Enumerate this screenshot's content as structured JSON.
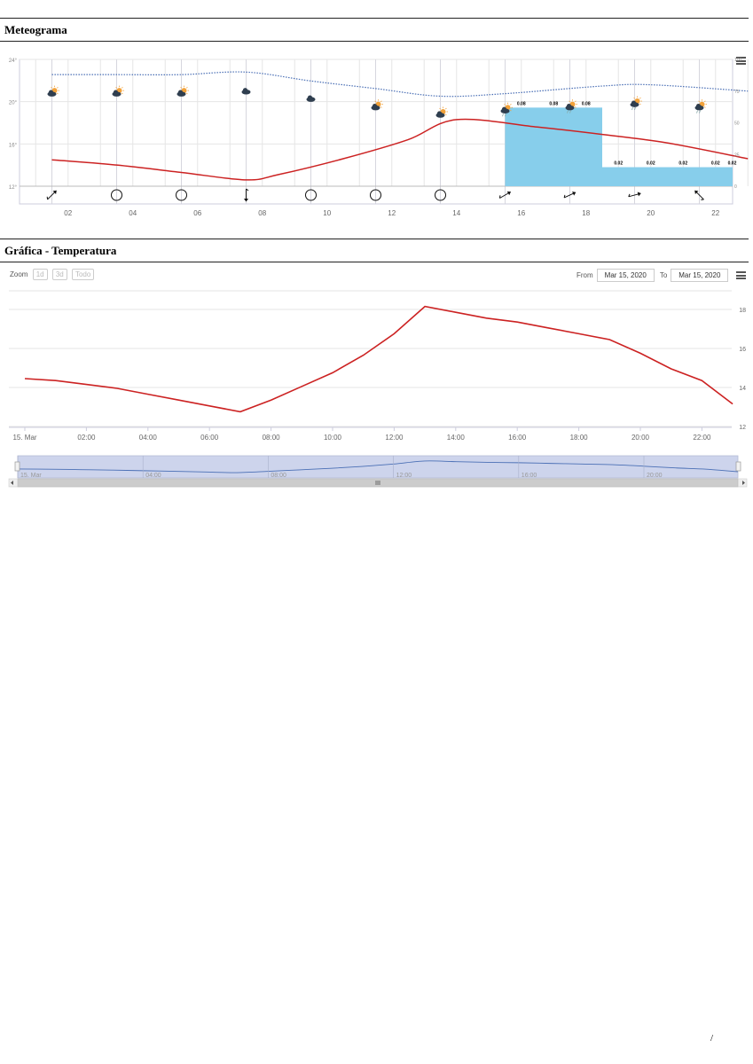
{
  "sections": {
    "meteogram_title": "Meteograma",
    "temperature_title": "Gráfica - Temperatura"
  },
  "zoom": {
    "label": "Zoom",
    "buttons": [
      "1d",
      "3d",
      "Todo"
    ]
  },
  "range": {
    "from_label": "From",
    "from_value": "Mar 15, 2020",
    "to_label": "To",
    "to_value": "Mar 15, 2020"
  },
  "page_number": "/",
  "chart_data": [
    {
      "type": "line",
      "title": "Meteograma",
      "x_ticks": [
        "02",
        "04",
        "06",
        "08",
        "10",
        "12",
        "14",
        "16",
        "18",
        "20",
        "22"
      ],
      "y_ticks": [
        "12°",
        "16°",
        "20°",
        "24°"
      ],
      "y2_ticks": [
        "0",
        "25",
        "50",
        "75",
        "100"
      ],
      "ylim": [
        12,
        24
      ],
      "y2lim": [
        0,
        100
      ],
      "series": [
        {
          "kind": "line",
          "color": "#cc2222",
          "points": [
            {
              "x": 1,
              "y": 14.5
            },
            {
              "x": 3,
              "y": 14.0
            },
            {
              "x": 5,
              "y": 13.3
            },
            {
              "x": 7,
              "y": 12.6
            },
            {
              "x": 8,
              "y": 13.1
            },
            {
              "x": 10,
              "y": 14.6
            },
            {
              "x": 12,
              "y": 16.4
            },
            {
              "x": 13.5,
              "y": 18.3
            },
            {
              "x": 16,
              "y": 17.6
            },
            {
              "x": 18,
              "y": 16.9
            },
            {
              "x": 20,
              "y": 16.1
            },
            {
              "x": 22.5,
              "y": 14.6
            }
          ]
        },
        {
          "kind": "dotted",
          "color": "#4a6fb5",
          "points": [
            {
              "x": 1,
              "y2": 88
            },
            {
              "x": 3,
              "y2": 88
            },
            {
              "x": 5,
              "y2": 88
            },
            {
              "x": 7,
              "y2": 90
            },
            {
              "x": 9,
              "y2": 83
            },
            {
              "x": 11,
              "y2": 77
            },
            {
              "x": 13,
              "y2": 71
            },
            {
              "x": 15,
              "y2": 73
            },
            {
              "x": 18,
              "y2": 79
            },
            {
              "x": 19.5,
              "y2": 80
            },
            {
              "x": 22.5,
              "y2": 75
            }
          ]
        }
      ],
      "precipitation": [
        {
          "x0": 15,
          "x1": 16,
          "value": 0.08,
          "y2": 62
        },
        {
          "x0": 16,
          "x1": 17,
          "value": 0.08,
          "y2": 62
        },
        {
          "x0": 17,
          "x1": 18,
          "value": 0.08,
          "y2": 62
        },
        {
          "x0": 18,
          "x1": 19,
          "value": 0.02,
          "y2": 15
        },
        {
          "x0": 19,
          "x1": 20,
          "value": 0.02,
          "y2": 15
        },
        {
          "x0": 20,
          "x1": 21,
          "value": 0.02,
          "y2": 15
        },
        {
          "x0": 21,
          "x1": 22,
          "value": 0.02,
          "y2": 15
        },
        {
          "x0": 22,
          "x1": 23,
          "value": 0.02,
          "y2": 15
        }
      ],
      "precipitation_color": "#87ceeb",
      "weather_icons": [
        {
          "x": 1,
          "icon": "partly-cloudy-night-icon",
          "level": 20.8
        },
        {
          "x": 3,
          "icon": "partly-cloudy-icon",
          "level": 20.8
        },
        {
          "x": 5,
          "icon": "partly-cloudy-icon",
          "level": 20.8
        },
        {
          "x": 7,
          "icon": "cloud-icon",
          "level": 21.0
        },
        {
          "x": 9,
          "icon": "cloud-icon",
          "level": 20.3
        },
        {
          "x": 11,
          "icon": "partly-cloudy-icon",
          "level": 19.5
        },
        {
          "x": 13,
          "icon": "partly-cloudy-icon",
          "level": 18.8
        },
        {
          "x": 15,
          "icon": "sun-rain-icon",
          "level": 19.2
        },
        {
          "x": 17,
          "icon": "sun-rain-icon",
          "level": 19.5
        },
        {
          "x": 19,
          "icon": "sun-rain-icon",
          "level": 19.8
        },
        {
          "x": 21,
          "icon": "sun-rain-icon",
          "level": 19.5
        }
      ],
      "wind": [
        {
          "x": 1,
          "type": "arrow",
          "direction": 225
        },
        {
          "x": 3,
          "type": "calm"
        },
        {
          "x": 5,
          "type": "calm"
        },
        {
          "x": 7,
          "type": "arrow",
          "direction": 0
        },
        {
          "x": 9,
          "type": "calm"
        },
        {
          "x": 11,
          "type": "calm"
        },
        {
          "x": 13,
          "type": "calm"
        },
        {
          "x": 15,
          "type": "arrow",
          "direction": 240
        },
        {
          "x": 17,
          "type": "arrow",
          "direction": 245
        },
        {
          "x": 19,
          "type": "arrow",
          "direction": 255
        },
        {
          "x": 21,
          "type": "arrow",
          "direction": 135
        }
      ]
    },
    {
      "type": "line",
      "title": "Gráfica - Temperatura",
      "x_ticks": [
        "15. Mar",
        "02:00",
        "04:00",
        "06:00",
        "08:00",
        "10:00",
        "12:00",
        "14:00",
        "16:00",
        "18:00",
        "20:00",
        "22:00"
      ],
      "y_ticks": [
        "12",
        "14",
        "16",
        "18"
      ],
      "ylim": [
        12,
        19
      ],
      "series": [
        {
          "name": "",
          "color": "#cc2222",
          "x": [
            0,
            1,
            2,
            3,
            4,
            5,
            6,
            7,
            8,
            9,
            10,
            11,
            12,
            13,
            14,
            15,
            16,
            17,
            18,
            19,
            20,
            21,
            22,
            23
          ],
          "values": [
            14.5,
            14.4,
            14.2,
            14.0,
            13.7,
            13.4,
            13.1,
            12.8,
            13.4,
            14.1,
            14.8,
            15.7,
            16.8,
            18.2,
            17.9,
            17.6,
            17.4,
            17.1,
            16.8,
            16.5,
            15.8,
            15.0,
            14.4,
            13.2
          ]
        }
      ],
      "navigator": {
        "x_ticks": [
          "15. Mar",
          "04:00",
          "08:00",
          "12:00",
          "16:00",
          "20:00"
        ],
        "line_color": "#4a6fb5",
        "mask_color": "#cdd4ec"
      }
    }
  ]
}
